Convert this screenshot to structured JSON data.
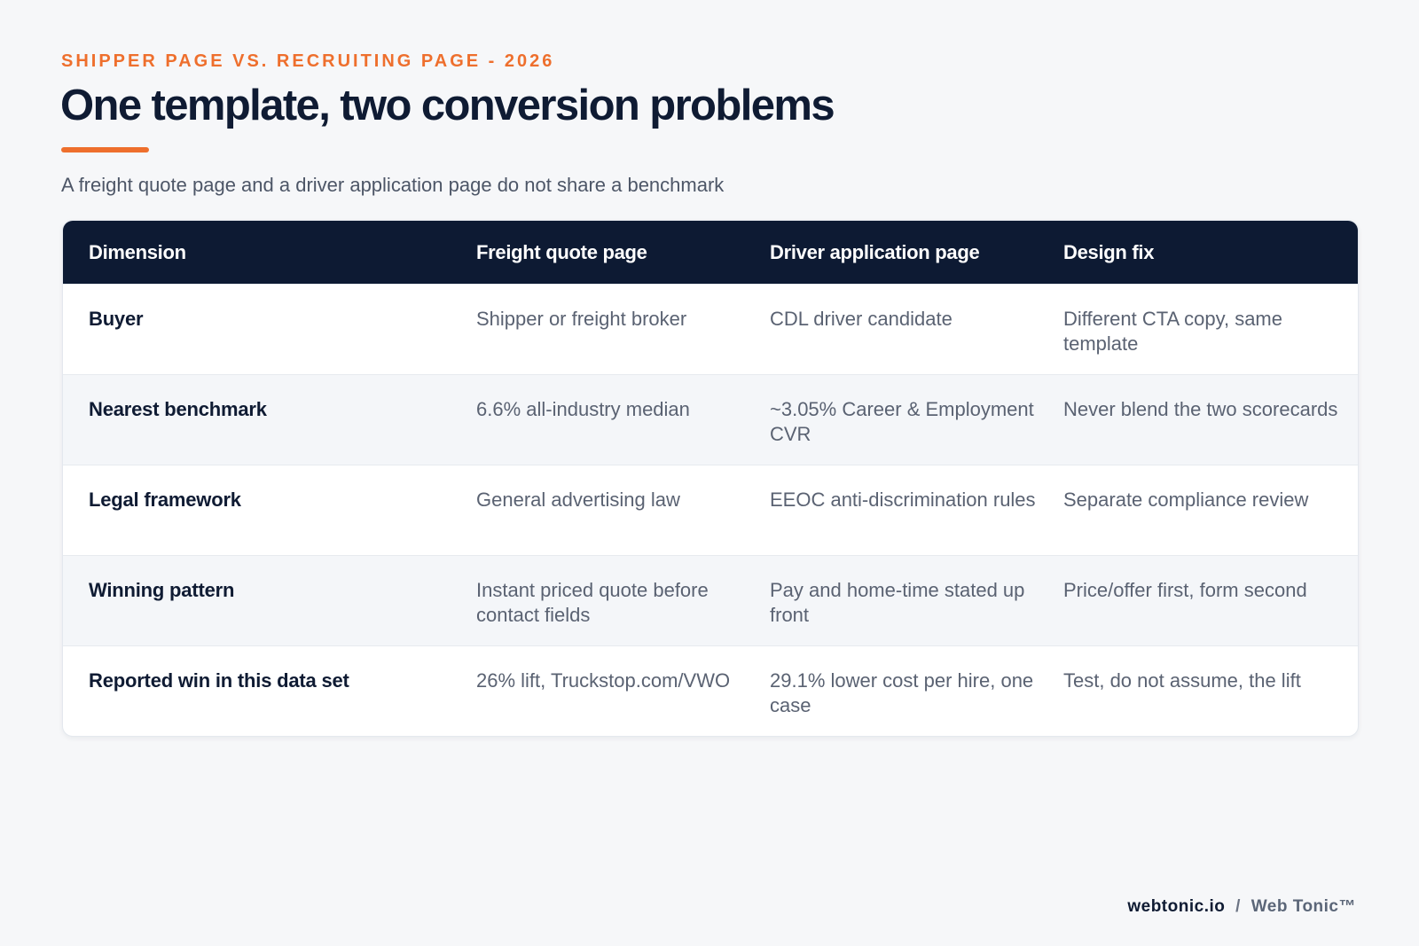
{
  "eyebrow": "SHIPPER PAGE VS. RECRUITING PAGE - 2026",
  "title": "One template, two conversion problems",
  "subtitle": "A freight quote page and a driver application page do not share a benchmark",
  "table": {
    "headers": [
      "Dimension",
      "Freight quote page",
      "Driver application page",
      "Design fix"
    ],
    "rows": [
      [
        "Buyer",
        "Shipper or freight broker",
        "CDL driver candidate",
        "Different CTA copy, same template"
      ],
      [
        "Nearest benchmark",
        "6.6% all-industry median",
        "~3.05% Career & Employment CVR",
        "Never blend the two scorecards"
      ],
      [
        "Legal framework",
        "General advertising law",
        "EEOC anti-discrimination rules",
        "Separate compliance review"
      ],
      [
        "Winning pattern",
        "Instant priced quote before contact fields",
        "Pay and home-time stated up front",
        "Price/offer first, form second"
      ],
      [
        "Reported win in this data set",
        "26% lift, Truckstop.com/VWO",
        "29.1% lower cost per hire, one case",
        "Test, do not assume, the lift"
      ]
    ]
  },
  "footer": {
    "domain": "webtonic.io",
    "separator": "/",
    "brand": "Web Tonic™"
  },
  "colors": {
    "accent": "#ee6f2d",
    "header_bg": "#0d1a33",
    "page_bg": "#f6f7f9"
  }
}
